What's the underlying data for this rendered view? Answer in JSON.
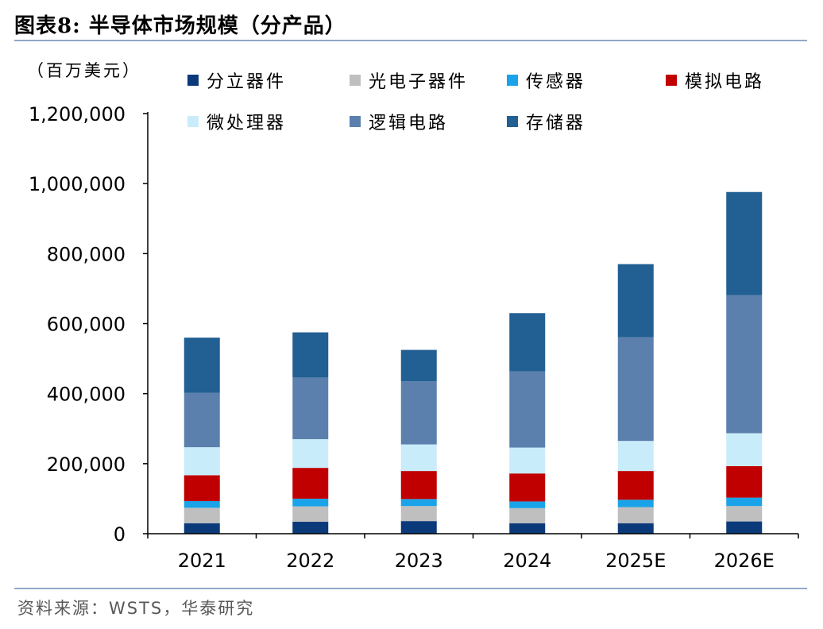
{
  "figure": {
    "title": "图表8:  半导体市场规模（分产品）",
    "source": "资料来源：WSTS，华泰研究"
  },
  "chart_data": {
    "type": "bar",
    "stacked": true,
    "title": "半导体市场规模（分产品）",
    "ylabel": "（百万美元）",
    "xlabel": "",
    "ylim": [
      0,
      1200000
    ],
    "yticks": [
      0,
      200000,
      400000,
      600000,
      800000,
      1000000,
      1200000
    ],
    "ytick_labels": [
      "0",
      "200,000",
      "400,000",
      "600,000",
      "800,000",
      "1,000,000",
      "1,200,000"
    ],
    "categories": [
      "2021",
      "2022",
      "2023",
      "2024",
      "2025E",
      "2026E"
    ],
    "legend_position": "top",
    "grid": false,
    "series": [
      {
        "name": "分立器件",
        "color": "#0b3a7a",
        "values": [
          30000,
          34000,
          36000,
          30000,
          30000,
          35000
        ]
      },
      {
        "name": "光电子器件",
        "color": "#bfbfbf",
        "values": [
          44000,
          44000,
          43000,
          43000,
          46000,
          44000
        ]
      },
      {
        "name": "传感器",
        "color": "#1aa3e8",
        "values": [
          19000,
          22000,
          20000,
          19000,
          21000,
          24000
        ]
      },
      {
        "name": "模拟电路",
        "color": "#c00000",
        "values": [
          74000,
          88000,
          80000,
          80000,
          82000,
          90000
        ]
      },
      {
        "name": "微处理器",
        "color": "#c9ecfa",
        "values": [
          80000,
          82000,
          76000,
          74000,
          86000,
          94000
        ]
      },
      {
        "name": "逻辑电路",
        "color": "#5b80ad",
        "values": [
          155000,
          176000,
          180000,
          218000,
          296000,
          394000
        ]
      },
      {
        "name": "存储器",
        "color": "#225f93",
        "values": [
          158000,
          129000,
          90000,
          166000,
          209000,
          295000
        ]
      }
    ]
  }
}
